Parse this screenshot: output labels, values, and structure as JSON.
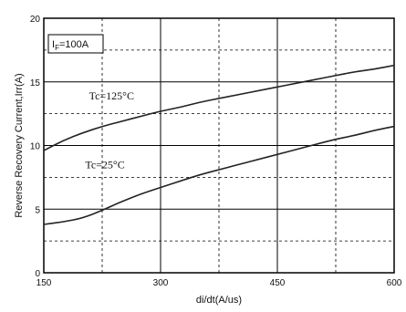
{
  "chart_data": {
    "type": "line",
    "xlabel": "di/dt(A/us)",
    "ylabel": "Reverse Recovery Current,Irr(A)",
    "xlim": [
      150,
      600
    ],
    "ylim": [
      0,
      20
    ],
    "x_ticks": [
      150,
      300,
      450,
      600
    ],
    "y_ticks": [
      0,
      5,
      10,
      15,
      20
    ],
    "x_tick_labels": [
      "150",
      "300",
      "450",
      "600"
    ],
    "y_tick_labels": [
      "0",
      "5",
      "10",
      "15",
      "20"
    ],
    "grid": true,
    "legend": {
      "text_main": "I",
      "text_sub": "F",
      "text_rest": "=100A",
      "placement": "top-left"
    },
    "series": [
      {
        "name": "Tc=125°C",
        "x": [
          150,
          175,
          200,
          225,
          250,
          275,
          300,
          325,
          350,
          375,
          400,
          425,
          450,
          475,
          500,
          525,
          550,
          575,
          600
        ],
        "values": [
          9.6,
          10.4,
          11.0,
          11.5,
          11.9,
          12.3,
          12.7,
          13.0,
          13.4,
          13.7,
          14.0,
          14.3,
          14.6,
          14.9,
          15.2,
          15.5,
          15.8,
          16.0,
          16.3
        ]
      },
      {
        "name": "Tc=25°C",
        "x": [
          150,
          175,
          200,
          225,
          250,
          275,
          300,
          325,
          350,
          375,
          400,
          425,
          450,
          475,
          500,
          525,
          550,
          575,
          600
        ],
        "values": [
          3.8,
          4.0,
          4.3,
          4.9,
          5.6,
          6.2,
          6.7,
          7.2,
          7.7,
          8.1,
          8.5,
          8.9,
          9.3,
          9.7,
          10.1,
          10.5,
          10.8,
          11.2,
          11.5
        ]
      }
    ],
    "curve_labels": [
      {
        "text": "Tc=125°C",
        "x": 255,
        "y": 13.9
      },
      {
        "text": "Tc=25°C",
        "x": 250,
        "y": 8.5
      }
    ]
  }
}
